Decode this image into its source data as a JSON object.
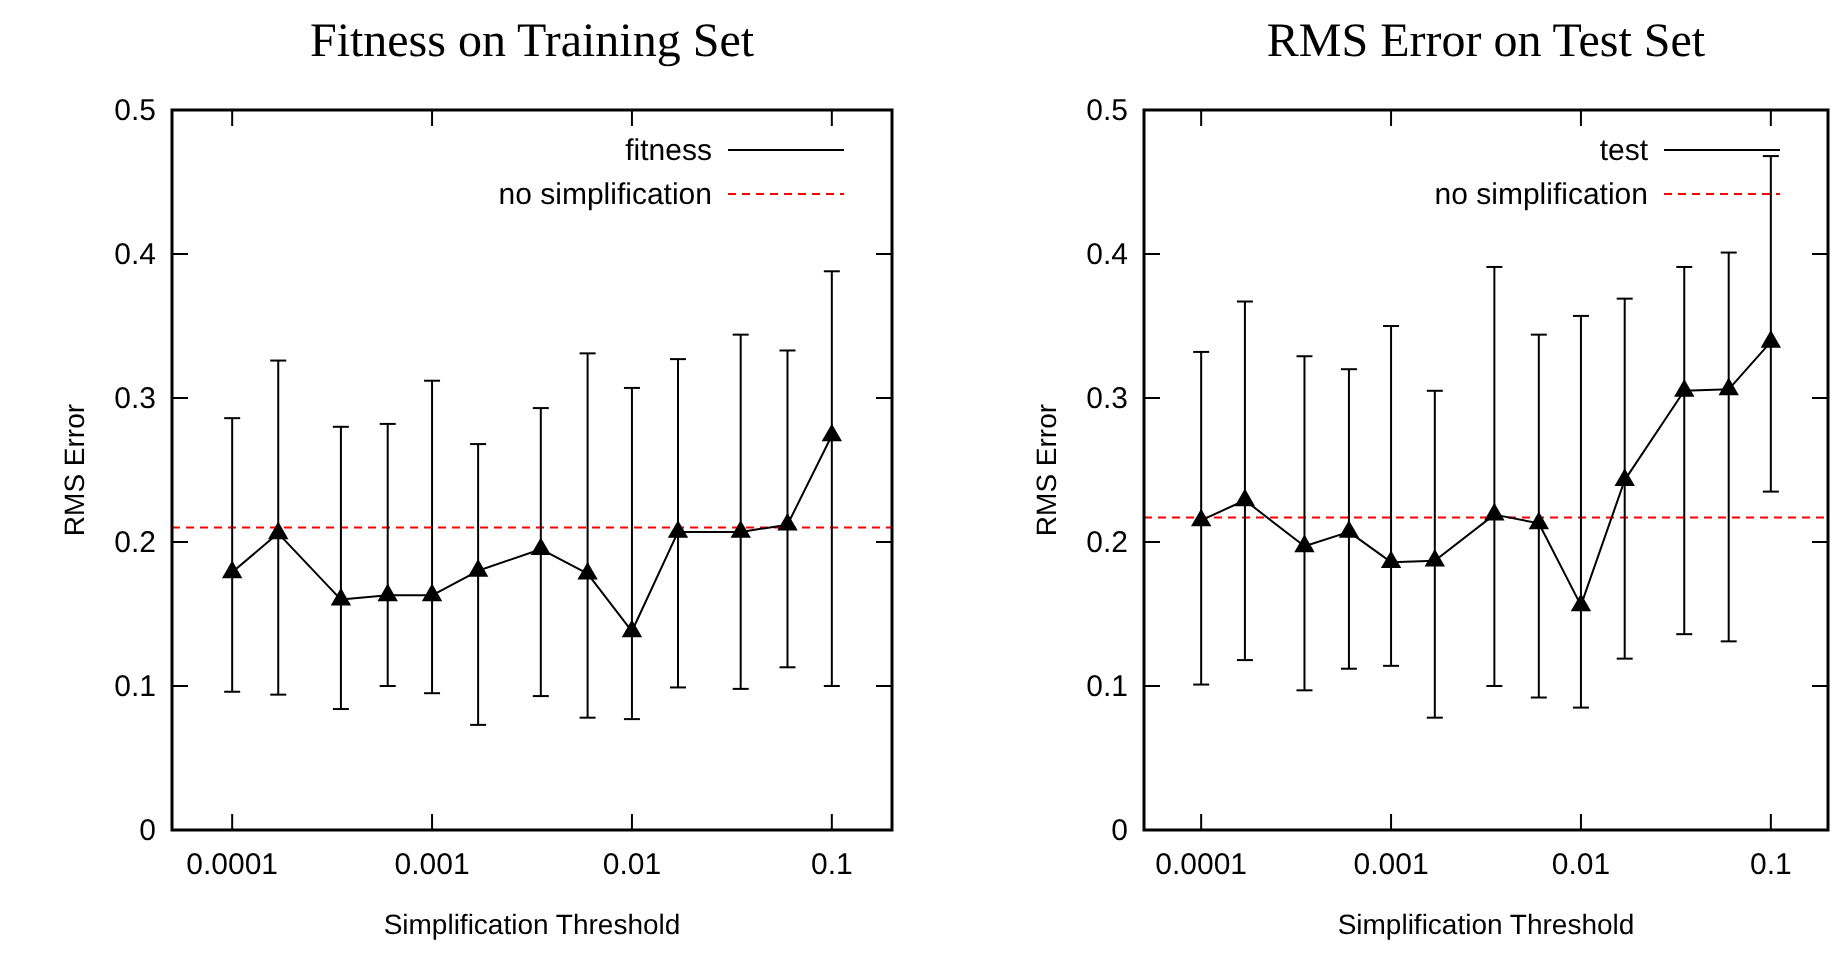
{
  "chart_data": [
    {
      "type": "line",
      "title": "Fitness on Training Set",
      "xlabel": "Simplification Threshold",
      "ylabel": "RMS Error",
      "log": "x",
      "marker": "triangle",
      "line_style": "solid",
      "legend": "top right",
      "grid": false,
      "xlim": [
        5e-05,
        0.2
      ],
      "xticks": [
        0.0001,
        0.001,
        0.01,
        0.1
      ],
      "ylim": [
        0,
        0.5
      ],
      "yticks": [
        0,
        0.1,
        0.2,
        0.3,
        0.4,
        0.5
      ],
      "x": [
        0.0001,
        0.00017,
        0.00035,
        0.0006,
        0.001,
        0.0017,
        0.0035,
        0.006,
        0.01,
        0.017,
        0.035,
        0.06,
        0.1
      ],
      "series": [
        {
          "name": "fitness",
          "color": "#000000",
          "values": [
            0.179,
            0.206,
            0.16,
            0.163,
            0.163,
            0.18,
            0.195,
            0.178,
            0.138,
            0.207,
            0.207,
            0.212,
            0.274
          ],
          "errors": [
            [
              0.096,
              0.286
            ],
            [
              0.094,
              0.326
            ],
            [
              0.084,
              0.28
            ],
            [
              0.1,
              0.282
            ],
            [
              0.095,
              0.312
            ],
            [
              0.073,
              0.268
            ],
            [
              0.093,
              0.293
            ],
            [
              0.078,
              0.331
            ],
            [
              0.077,
              0.307
            ],
            [
              0.099,
              0.327
            ],
            [
              0.098,
              0.344
            ],
            [
              0.113,
              0.333
            ],
            [
              0.1,
              0.388
            ]
          ]
        }
      ],
      "ref_lines": [
        {
          "axis": "y",
          "value": 0.21,
          "label": "no simplification",
          "color": "#ff0000",
          "line_style": "dashed"
        }
      ]
    },
    {
      "type": "line",
      "title": "RMS Error on Test Set",
      "xlabel": "Simplification Threshold",
      "ylabel": "RMS Error",
      "log": "x",
      "marker": "triangle",
      "line_style": "solid",
      "legend": "top right",
      "grid": false,
      "xlim": [
        5e-05,
        0.2
      ],
      "xticks": [
        0.0001,
        0.001,
        0.01,
        0.1
      ],
      "ylim": [
        0,
        0.5
      ],
      "yticks": [
        0,
        0.1,
        0.2,
        0.3,
        0.4,
        0.5
      ],
      "x": [
        0.0001,
        0.00017,
        0.00035,
        0.0006,
        0.001,
        0.0017,
        0.0035,
        0.006,
        0.01,
        0.017,
        0.035,
        0.06,
        0.1
      ],
      "series": [
        {
          "name": "test",
          "color": "#000000",
          "values": [
            0.215,
            0.229,
            0.197,
            0.207,
            0.186,
            0.187,
            0.219,
            0.213,
            0.156,
            0.243,
            0.305,
            0.306,
            0.339
          ],
          "errors": [
            [
              0.101,
              0.332
            ],
            [
              0.118,
              0.367
            ],
            [
              0.097,
              0.329
            ],
            [
              0.112,
              0.32
            ],
            [
              0.114,
              0.35
            ],
            [
              0.078,
              0.305
            ],
            [
              0.1,
              0.391
            ],
            [
              0.092,
              0.344
            ],
            [
              0.085,
              0.357
            ],
            [
              0.119,
              0.369
            ],
            [
              0.136,
              0.391
            ],
            [
              0.131,
              0.401
            ],
            [
              0.235,
              0.468
            ]
          ]
        }
      ],
      "ref_lines": [
        {
          "axis": "y",
          "value": 0.217,
          "label": "no simplification",
          "color": "#ff0000",
          "line_style": "dashed"
        }
      ]
    }
  ]
}
